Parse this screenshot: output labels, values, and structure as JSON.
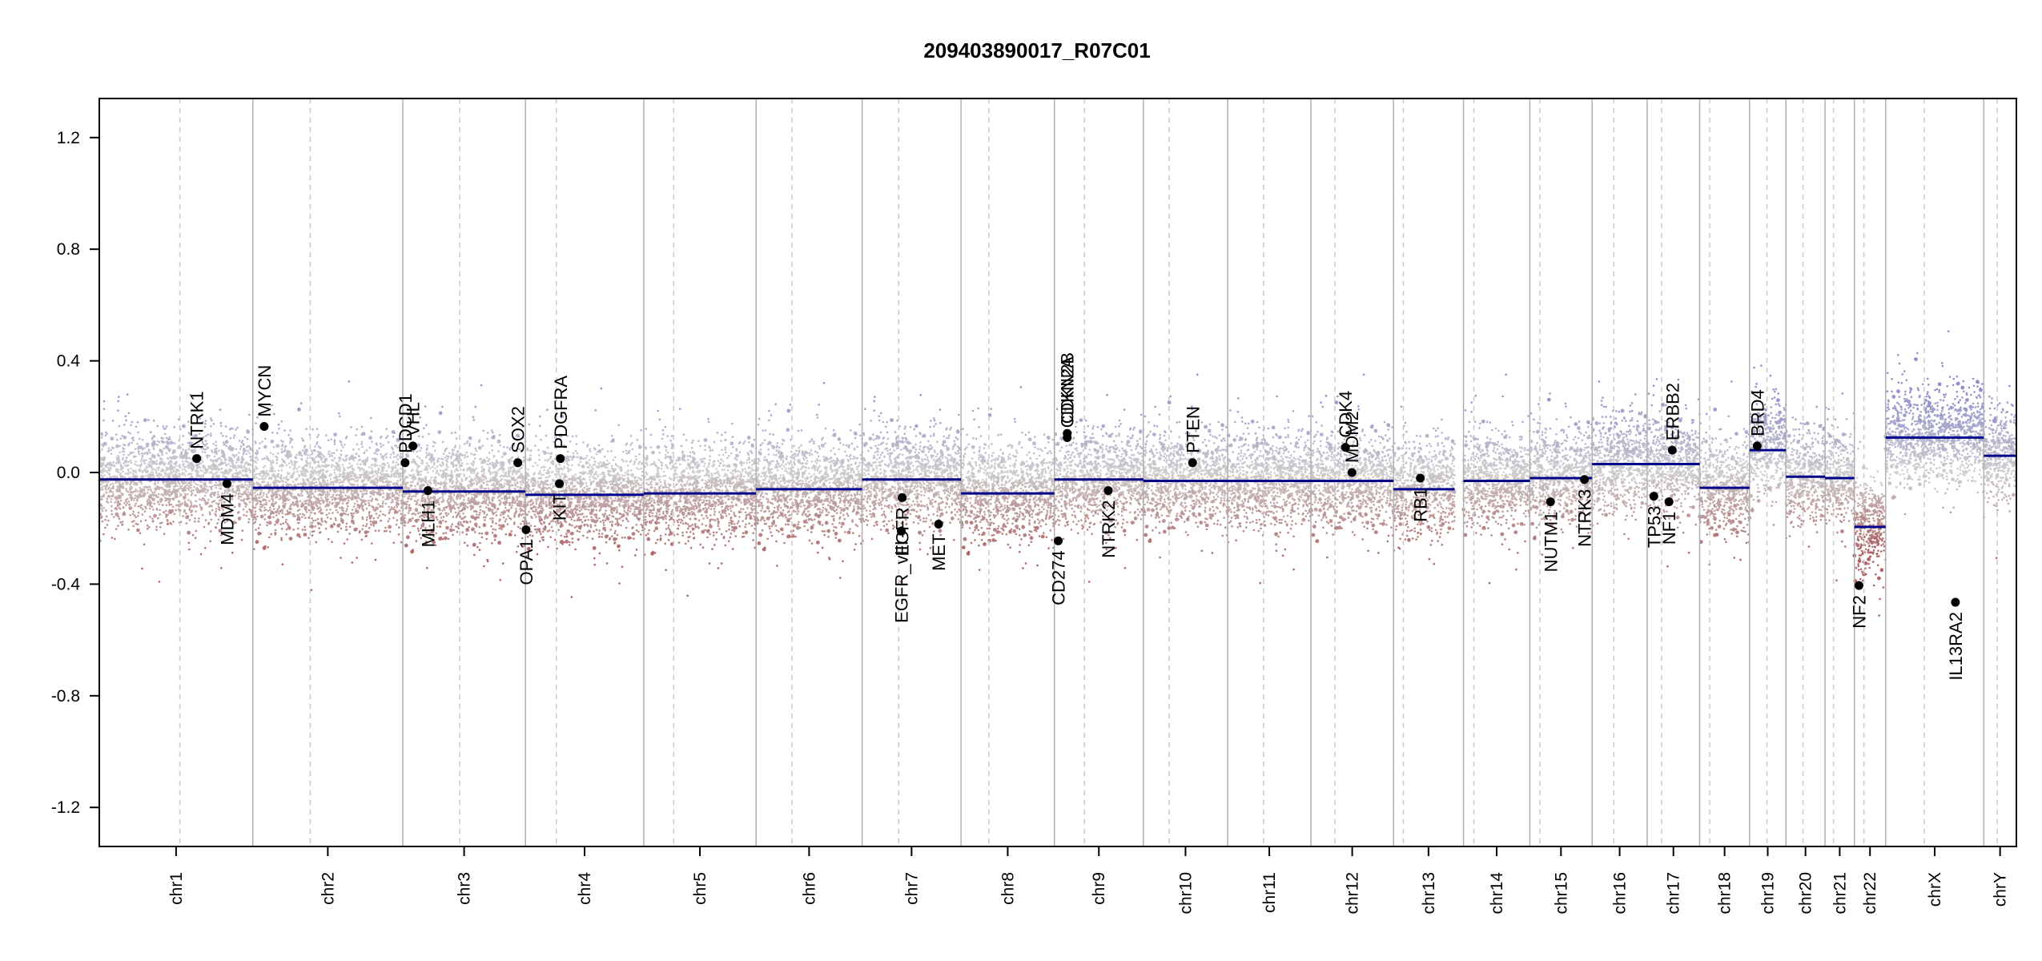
{
  "chart_data": {
    "type": "scatter",
    "title": "209403890017_R07C01",
    "xlabel": "",
    "ylabel": "",
    "ylim": [
      -1.34,
      1.34
    ],
    "y_ticks": [
      -1.2,
      -0.8,
      -0.4,
      0.0,
      0.4,
      0.8,
      1.2
    ],
    "y_tick_labels": [
      "-1.2",
      "-0.8",
      "-0.4",
      "0.0",
      "0.4",
      "0.8",
      "1.2"
    ],
    "x_unit": "genome position (relative, 0-1000)",
    "colors": {
      "gain": "#7b7bc6",
      "loss": "#a14a4a",
      "neutral": "#c8c8c8",
      "segment": "#00008b",
      "chrom_line": "#b0b0b0",
      "centromere": "#c8c8c8"
    },
    "chromosomes": [
      {
        "name": "chr1",
        "start": 0,
        "end": 80.1,
        "cen": 42.0
      },
      {
        "name": "chr2",
        "start": 80.1,
        "end": 158.3,
        "cen": 110.0
      },
      {
        "name": "chr3",
        "start": 158.3,
        "end": 222.3,
        "cen": 188.0
      },
      {
        "name": "chr4",
        "start": 222.3,
        "end": 284.0,
        "cen": 238.4
      },
      {
        "name": "chr5",
        "start": 284.0,
        "end": 342.6,
        "cen": 299.6
      },
      {
        "name": "chr6",
        "start": 342.6,
        "end": 397.9,
        "cen": 361.3
      },
      {
        "name": "chr7",
        "start": 397.9,
        "end": 449.5,
        "cen": 417.0
      },
      {
        "name": "chr8",
        "start": 449.5,
        "end": 498.2,
        "cen": 464.0
      },
      {
        "name": "chr9",
        "start": 498.2,
        "end": 544.6,
        "cen": 513.9
      },
      {
        "name": "chr10",
        "start": 544.6,
        "end": 588.6,
        "cen": 558.0
      },
      {
        "name": "chr11",
        "start": 588.6,
        "end": 632.0,
        "cen": 607.3
      },
      {
        "name": "chr12",
        "start": 632.0,
        "end": 675.1,
        "cen": 644.5
      },
      {
        "name": "chr13",
        "start": 675.1,
        "end": 711.6,
        "cen": 680.2
      },
      {
        "name": "chr14",
        "start": 711.6,
        "end": 746.2,
        "cen": 717.0
      },
      {
        "name": "chr15",
        "start": 746.2,
        "end": 778.7,
        "cen": 751.4
      },
      {
        "name": "chr16",
        "start": 778.7,
        "end": 807.4,
        "cen": 790.0
      },
      {
        "name": "chr17",
        "start": 807.4,
        "end": 834.8,
        "cen": 815.0
      },
      {
        "name": "chr18",
        "start": 834.8,
        "end": 860.8,
        "cen": 840.0
      },
      {
        "name": "chr19",
        "start": 860.8,
        "end": 879.8,
        "cen": 869.9
      },
      {
        "name": "chr20",
        "start": 879.8,
        "end": 900.2,
        "cen": 888.7
      },
      {
        "name": "chr21",
        "start": 900.2,
        "end": 915.5,
        "cen": 904.6
      },
      {
        "name": "chr22",
        "start": 915.5,
        "end": 931.8,
        "cen": 920.5
      },
      {
        "name": "chrX",
        "start": 931.8,
        "end": 983.0,
        "cen": 951.9
      },
      {
        "name": "chrY",
        "start": 983.0,
        "end": 1000.0,
        "cen": 990.0
      }
    ],
    "segments": [
      {
        "x0": 0,
        "x1": 80.1,
        "y": -0.025
      },
      {
        "x0": 80.1,
        "x1": 158.3,
        "y": -0.055
      },
      {
        "x0": 158.3,
        "x1": 222.3,
        "y": -0.068
      },
      {
        "x0": 222.3,
        "x1": 284.0,
        "y": -0.08
      },
      {
        "x0": 284.0,
        "x1": 342.6,
        "y": -0.075
      },
      {
        "x0": 342.6,
        "x1": 397.9,
        "y": -0.06
      },
      {
        "x0": 397.9,
        "x1": 449.5,
        "y": -0.025
      },
      {
        "x0": 449.5,
        "x1": 498.2,
        "y": -0.075
      },
      {
        "x0": 498.2,
        "x1": 544.6,
        "y": -0.025
      },
      {
        "x0": 544.6,
        "x1": 588.6,
        "y": -0.03
      },
      {
        "x0": 588.6,
        "x1": 632.0,
        "y": -0.03
      },
      {
        "x0": 632.0,
        "x1": 675.1,
        "y": -0.03
      },
      {
        "x0": 675.1,
        "x1": 707.0,
        "y": -0.06
      },
      {
        "x0": 711.6,
        "x1": 746.2,
        "y": -0.03
      },
      {
        "x0": 746.2,
        "x1": 778.7,
        "y": -0.02
      },
      {
        "x0": 778.7,
        "x1": 807.4,
        "y": 0.03
      },
      {
        "x0": 807.4,
        "x1": 834.8,
        "y": 0.03
      },
      {
        "x0": 834.8,
        "x1": 860.8,
        "y": -0.055
      },
      {
        "x0": 860.8,
        "x1": 879.8,
        "y": 0.08
      },
      {
        "x0": 879.8,
        "x1": 900.2,
        "y": -0.015
      },
      {
        "x0": 900.2,
        "x1": 915.5,
        "y": -0.02
      },
      {
        "x0": 915.5,
        "x1": 931.8,
        "y": -0.195
      },
      {
        "x0": 931.8,
        "x1": 983.0,
        "y": 0.125
      },
      {
        "x0": 983.0,
        "x1": 1000.0,
        "y": 0.06
      }
    ],
    "genes": [
      {
        "label": "NTRK1",
        "x": 50.8,
        "y": 0.05,
        "side": "above"
      },
      {
        "label": "MDM4",
        "x": 66.6,
        "y": -0.04,
        "side": "below"
      },
      {
        "label": "MYCN",
        "x": 86.0,
        "y": 0.165,
        "side": "above"
      },
      {
        "label": "PDCD1",
        "x": 159.5,
        "y": 0.035,
        "side": "above"
      },
      {
        "label": "VHL",
        "x": 163.6,
        "y": 0.095,
        "side": "above"
      },
      {
        "label": "MLH1",
        "x": 171.4,
        "y": -0.065,
        "side": "below"
      },
      {
        "label": "SOX2",
        "x": 218.3,
        "y": 0.035,
        "side": "above"
      },
      {
        "label": "OPA1",
        "x": 222.6,
        "y": -0.205,
        "side": "below"
      },
      {
        "label": "KIT",
        "x": 240.0,
        "y": -0.04,
        "side": "below"
      },
      {
        "label": "PDGFRA",
        "x": 240.5,
        "y": 0.05,
        "side": "above"
      },
      {
        "label": "EGFR_vIII",
        "x": 418.3,
        "y": -0.21,
        "side": "below"
      },
      {
        "label": "EGFR",
        "x": 418.8,
        "y": -0.09,
        "side": "below"
      },
      {
        "label": "MET",
        "x": 437.8,
        "y": -0.185,
        "side": "below"
      },
      {
        "label": "CD274",
        "x": 500.2,
        "y": -0.245,
        "side": "below"
      },
      {
        "label": "CDKN2A",
        "x": 504.9,
        "y": 0.125,
        "side": "above"
      },
      {
        "label": "CDKN2B",
        "x": 504.9,
        "y": 0.14,
        "side": "above"
      },
      {
        "label": "NTRK2",
        "x": 526.3,
        "y": -0.065,
        "side": "below"
      },
      {
        "label": "PTEN",
        "x": 570.3,
        "y": 0.035,
        "side": "above"
      },
      {
        "label": "CDK4",
        "x": 650.0,
        "y": 0.09,
        "side": "above"
      },
      {
        "label": "MDM2",
        "x": 653.4,
        "y": 0.0,
        "side": "above"
      },
      {
        "label": "RB1",
        "x": 689.1,
        "y": -0.02,
        "side": "below"
      },
      {
        "label": "NUTM1",
        "x": 757.0,
        "y": -0.105,
        "side": "below"
      },
      {
        "label": "NTRK3",
        "x": 774.7,
        "y": -0.025,
        "side": "below"
      },
      {
        "label": "TP53",
        "x": 810.9,
        "y": -0.085,
        "side": "below"
      },
      {
        "label": "NF1",
        "x": 818.8,
        "y": -0.105,
        "side": "below"
      },
      {
        "label": "ERBB2",
        "x": 820.5,
        "y": 0.08,
        "side": "above"
      },
      {
        "label": "BRD4",
        "x": 864.8,
        "y": 0.095,
        "side": "above"
      },
      {
        "label": "NF2",
        "x": 917.9,
        "y": -0.405,
        "side": "below"
      },
      {
        "label": "IL13RA2",
        "x": 968.2,
        "y": -0.465,
        "side": "below"
      }
    ]
  }
}
